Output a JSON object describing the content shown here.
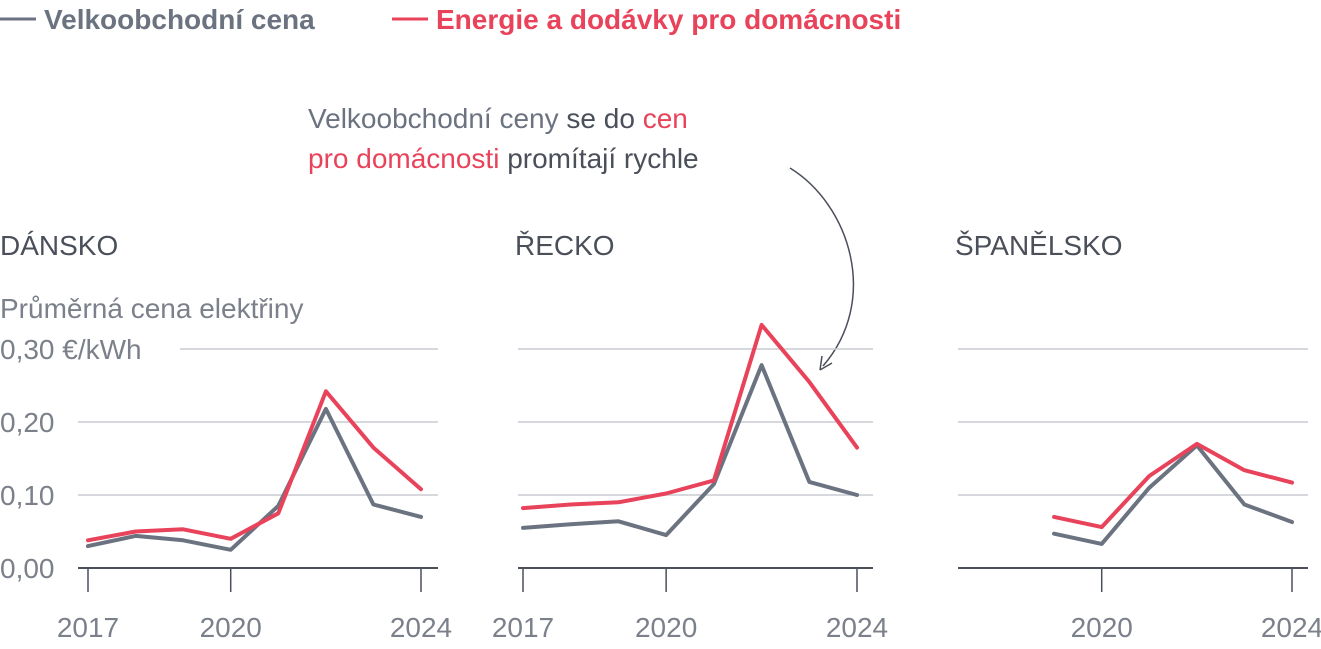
{
  "colors": {
    "wholesale": "#6b7280",
    "household": "#e8435a",
    "grid": "#c9ccd3",
    "axis": "#4a4f5a",
    "text": "#7b808a"
  },
  "legend": [
    {
      "label": "Velkoobchodní cena",
      "color": "#6b7280"
    },
    {
      "label": "Energie a dodávky pro domácnosti",
      "color": "#e8435a"
    }
  ],
  "annotation": {
    "line1_grey": "Velkoobchodní ceny",
    "line1_mid": " se do ",
    "line1_red": "cen",
    "line2_red": "pro domácnosti",
    "line2_grey": " promítají rychle"
  },
  "chart_data": [
    {
      "type": "line",
      "title": "DÁNSKO",
      "ylabel": "Průměrná cena elektřiny",
      "yunit": "€/kWh",
      "ylim": [
        0,
        0.3
      ],
      "yticks": [
        0,
        0.1,
        0.2,
        0.3
      ],
      "ytick_labels": [
        "0,00",
        "0,10",
        "0,20",
        "0,30 €/kWh"
      ],
      "xlim": [
        2017,
        2024
      ],
      "xticks": [
        2017,
        2020,
        2024
      ],
      "x": [
        2017,
        2018,
        2019,
        2020,
        2021,
        2022,
        2023,
        2024
      ],
      "series": [
        {
          "name": "Velkoobchodní cena",
          "key": "wholesale",
          "values": [
            0.03,
            0.044,
            0.038,
            0.025,
            0.085,
            0.218,
            0.087,
            0.07
          ]
        },
        {
          "name": "Energie a dodávky pro domácnosti",
          "key": "household",
          "values": [
            0.038,
            0.05,
            0.053,
            0.04,
            0.075,
            0.242,
            0.165,
            0.108
          ]
        }
      ]
    },
    {
      "type": "line",
      "title": "ŘECKO",
      "ylim": [
        0,
        0.3
      ],
      "yticks": [
        0,
        0.1,
        0.2,
        0.3
      ],
      "xlim": [
        2017,
        2024
      ],
      "xticks": [
        2017,
        2020,
        2024
      ],
      "x": [
        2017,
        2018,
        2019,
        2020,
        2021,
        2022,
        2023,
        2024
      ],
      "series": [
        {
          "name": "Velkoobchodní cena",
          "key": "wholesale",
          "values": [
            0.055,
            0.06,
            0.064,
            0.045,
            0.115,
            0.278,
            0.118,
            0.1
          ]
        },
        {
          "name": "Energie a dodávky pro domácnosti",
          "key": "household",
          "values": [
            0.082,
            0.087,
            0.09,
            0.102,
            0.12,
            0.333,
            0.255,
            0.165
          ]
        }
      ]
    },
    {
      "type": "line",
      "title": "ŠPANĚLSKO",
      "ylim": [
        0,
        0.3
      ],
      "yticks": [
        0,
        0.1,
        0.2,
        0.3
      ],
      "xlim": [
        2017,
        2024
      ],
      "xticks": [
        2020,
        2024
      ],
      "x": [
        2019,
        2020,
        2021,
        2022,
        2023,
        2024
      ],
      "series": [
        {
          "name": "Velkoobchodní cena",
          "key": "wholesale",
          "values": [
            0.047,
            0.033,
            0.11,
            0.168,
            0.087,
            0.063
          ]
        },
        {
          "name": "Energie a dodávky pro domácnosti",
          "key": "household",
          "values": [
            0.07,
            0.056,
            0.126,
            0.17,
            0.134,
            0.117
          ]
        }
      ]
    }
  ]
}
